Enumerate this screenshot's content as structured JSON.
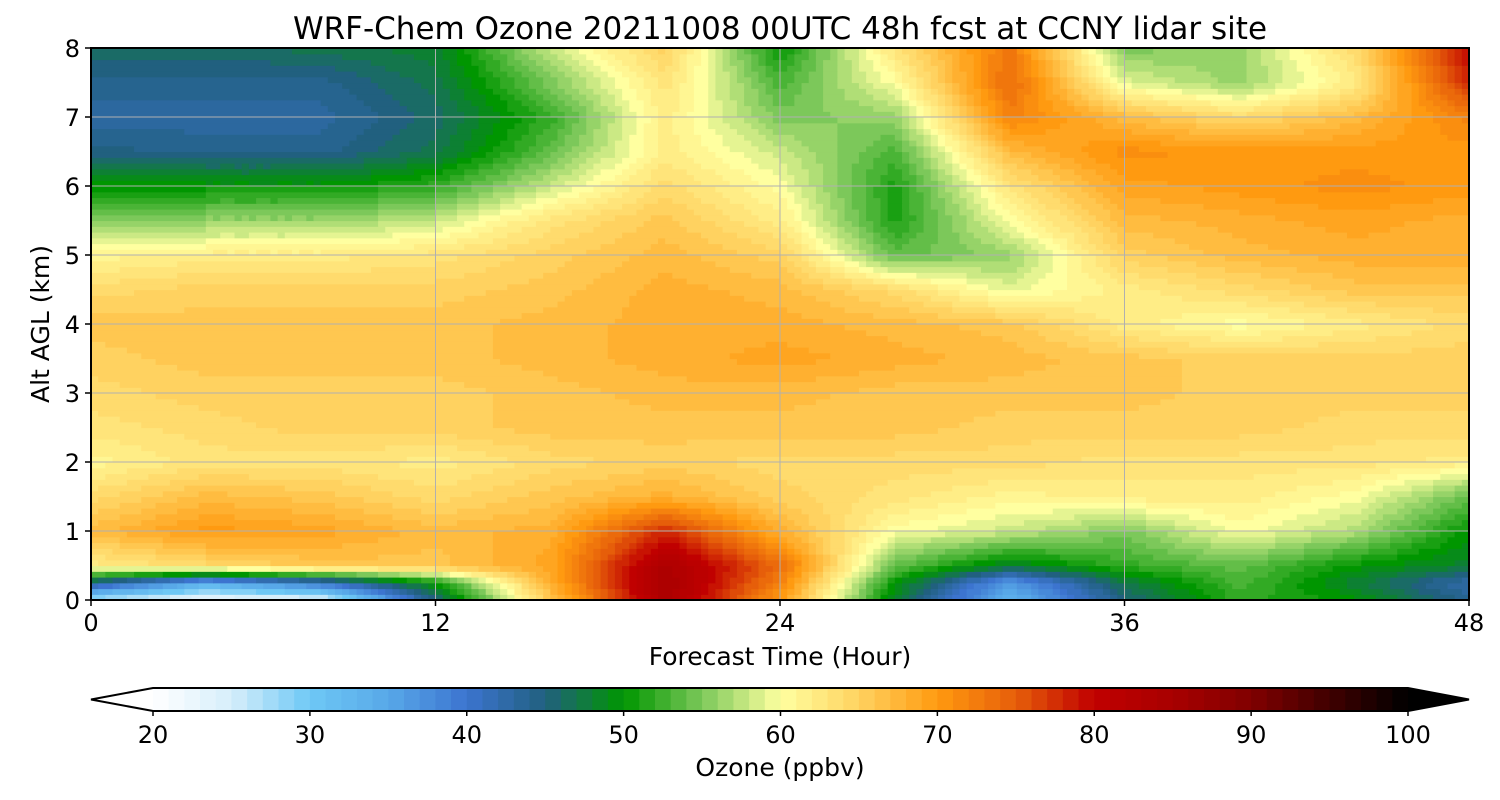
{
  "chart_data": {
    "type": "heatmap",
    "subtype": "filled-contour",
    "title": "WRF-Chem Ozone  20211008 00UTC 48h fcst at CCNY lidar site",
    "xlabel": "Forecast Time (Hour)",
    "ylabel": "Alt AGL (km)",
    "xlim": [
      0,
      48
    ],
    "ylim": [
      0,
      8
    ],
    "x_ticks": [
      0,
      12,
      24,
      36,
      48
    ],
    "y_ticks": [
      0,
      1,
      2,
      3,
      4,
      5,
      6,
      7,
      8
    ],
    "grid": true,
    "x": [
      0,
      4,
      8,
      12,
      16,
      20,
      24,
      28,
      32,
      36,
      40,
      44,
      48
    ],
    "y": [
      0,
      0.25,
      0.5,
      1,
      1.5,
      2,
      2.5,
      3,
      3.5,
      4,
      4.5,
      5,
      5.5,
      6,
      6.5,
      7,
      7.5,
      8
    ],
    "z_rows": [
      [
        26,
        22,
        23,
        45,
        66,
        84,
        70,
        48,
        33,
        45,
        52,
        50,
        44
      ],
      [
        44,
        34,
        40,
        50,
        68,
        85,
        72,
        50,
        36,
        47,
        53,
        48,
        42
      ],
      [
        62,
        64,
        66,
        66,
        69,
        84,
        74,
        54,
        48,
        52,
        54,
        50,
        48
      ],
      [
        67,
        70,
        69,
        67,
        68,
        78,
        68,
        60,
        58,
        55,
        60,
        57,
        50
      ],
      [
        64,
        67,
        66,
        64,
        66,
        68,
        65,
        63,
        61,
        62,
        62,
        60,
        54
      ],
      [
        61,
        63,
        63,
        62,
        64,
        65,
        64,
        64,
        64,
        63,
        63,
        63,
        62
      ],
      [
        63,
        64,
        65,
        65,
        66,
        66,
        66,
        66,
        65,
        65,
        65,
        64,
        64
      ],
      [
        64,
        65,
        65,
        65,
        66,
        67,
        67,
        66,
        66,
        66,
        65,
        65,
        65
      ],
      [
        65,
        66,
        66,
        66,
        67,
        68,
        69,
        68,
        67,
        66,
        65,
        65,
        65
      ],
      [
        66,
        66,
        66,
        66,
        67,
        68,
        68,
        67,
        66,
        62,
        60,
        62,
        64
      ],
      [
        64,
        65,
        65,
        65,
        66,
        68,
        67,
        64,
        59,
        62,
        64,
        66,
        66
      ],
      [
        61,
        62,
        62,
        63,
        65,
        67,
        65,
        54,
        56,
        65,
        67,
        68,
        68
      ],
      [
        55,
        56,
        56,
        58,
        63,
        66,
        62,
        51,
        60,
        67,
        68,
        69,
        68
      ],
      [
        50,
        50,
        50,
        52,
        58,
        64,
        60,
        51,
        63,
        69,
        70,
        71,
        70
      ],
      [
        45,
        44,
        44,
        47,
        54,
        62,
        58,
        53,
        67,
        71,
        70,
        70,
        70
      ],
      [
        43,
        43,
        43,
        46,
        52,
        62,
        55,
        56,
        72,
        67,
        64,
        67,
        72
      ],
      [
        44,
        44,
        44,
        47,
        55,
        63,
        53,
        60,
        74,
        59,
        56,
        62,
        78
      ],
      [
        46,
        46,
        47,
        48,
        58,
        65,
        50,
        63,
        73,
        55,
        56,
        64,
        80
      ]
    ],
    "colorbar": {
      "label": "Ozone  (ppbv)",
      "min": 20,
      "max": 100,
      "ticks": [
        20,
        30,
        40,
        50,
        60,
        70,
        80,
        90,
        100
      ],
      "extend": "both",
      "color_stops": [
        [
          20,
          "#ffffff"
        ],
        [
          25,
          "#d6eefa"
        ],
        [
          30,
          "#6ec8f5"
        ],
        [
          35,
          "#58a8e8"
        ],
        [
          40,
          "#3c74cf"
        ],
        [
          45,
          "#21607f"
        ],
        [
          50,
          "#009600"
        ],
        [
          55,
          "#7cc85a"
        ],
        [
          60,
          "#ffffa0"
        ],
        [
          65,
          "#ffd260"
        ],
        [
          70,
          "#ff9a10"
        ],
        [
          75,
          "#e65e0a"
        ],
        [
          80,
          "#c00000"
        ],
        [
          85,
          "#a80000"
        ],
        [
          90,
          "#800000"
        ],
        [
          95,
          "#400000"
        ],
        [
          100,
          "#000000"
        ]
      ]
    }
  }
}
